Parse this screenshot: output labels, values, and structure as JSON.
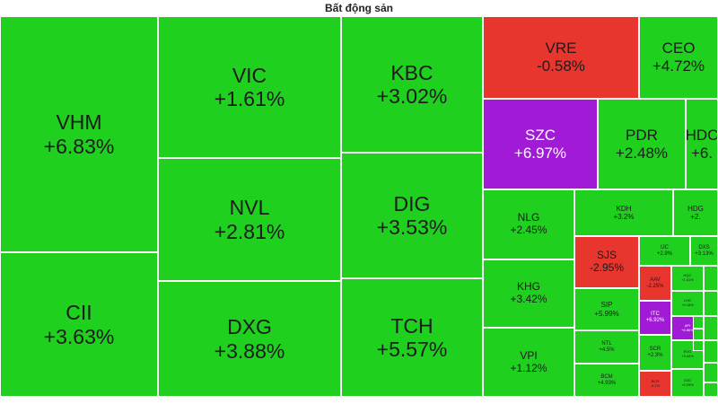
{
  "header": {
    "title": "Bất động sản"
  },
  "colors": {
    "up": "#1fd01f",
    "down": "#e8362f",
    "ceiling": "#a11ad6"
  },
  "tiles": [
    {
      "symbol": "VHM",
      "change": "+6.83%",
      "status": "up"
    },
    {
      "symbol": "CII",
      "change": "+3.63%",
      "status": "up"
    },
    {
      "symbol": "VIC",
      "change": "+1.61%",
      "status": "up"
    },
    {
      "symbol": "NVL",
      "change": "+2.81%",
      "status": "up"
    },
    {
      "symbol": "DXG",
      "change": "+3.88%",
      "status": "up"
    },
    {
      "symbol": "KBC",
      "change": "+3.02%",
      "status": "up"
    },
    {
      "symbol": "DIG",
      "change": "+3.53%",
      "status": "up"
    },
    {
      "symbol": "TCH",
      "change": "+5.57%",
      "status": "up"
    },
    {
      "symbol": "VRE",
      "change": "-0.58%",
      "status": "down"
    },
    {
      "symbol": "CEO",
      "change": "+4.72%",
      "status": "up"
    },
    {
      "symbol": "SZC",
      "change": "+6.97%",
      "status": "ceil"
    },
    {
      "symbol": "PDR",
      "change": "+2.48%",
      "status": "up"
    },
    {
      "symbol": "HDC",
      "change": "+6.",
      "status": "up"
    },
    {
      "symbol": "NLG",
      "change": "+2.45%",
      "status": "up"
    },
    {
      "symbol": "KHG",
      "change": "+3.42%",
      "status": "up"
    },
    {
      "symbol": "VPI",
      "change": "+1.12%",
      "status": "up"
    },
    {
      "symbol": "KDH",
      "change": "+3.2%",
      "status": "up"
    },
    {
      "symbol": "HDG",
      "change": "+2.",
      "status": "up"
    },
    {
      "symbol": "SJS",
      "change": "-2.95%",
      "status": "down"
    },
    {
      "symbol": "SIP",
      "change": "+5.99%",
      "status": "up"
    },
    {
      "symbol": "NTL",
      "change": "+4.5%",
      "status": "up"
    },
    {
      "symbol": "BCM",
      "change": "+4.93%",
      "status": "up"
    },
    {
      "symbol": "IJC",
      "change": "+2.9%",
      "status": "up"
    },
    {
      "symbol": "DXS",
      "change": "+3.13%",
      "status": "up"
    },
    {
      "symbol": "AAV",
      "change": "-2.25%",
      "status": "down"
    },
    {
      "symbol": "ITC",
      "change": "+6.92%",
      "status": "ceil"
    },
    {
      "symbol": "SCR",
      "change": "+2.3%",
      "status": "up"
    },
    {
      "symbol": "BCR",
      "change": "-8.7%",
      "status": "down"
    },
    {
      "symbol": "HQC",
      "change": "+1.81%",
      "status": "up"
    },
    {
      "symbol": "LHG",
      "change": "+5.18%",
      "status": "up"
    },
    {
      "symbol": "API",
      "change": "+6.86%",
      "status": "ceil"
    },
    {
      "symbol": "EVG",
      "change": "+3.44%",
      "status": "up"
    },
    {
      "symbol": "D2D",
      "change": "+0.29%",
      "status": "up"
    },
    {
      "symbol": "",
      "change": "",
      "status": "up"
    },
    {
      "symbol": "",
      "change": "",
      "status": "up"
    },
    {
      "symbol": "",
      "change": "",
      "status": "up"
    },
    {
      "symbol": "",
      "change": "",
      "status": "up"
    },
    {
      "symbol": "",
      "change": "",
      "status": "up"
    },
    {
      "symbol": "",
      "change": "",
      "status": "up"
    },
    {
      "symbol": "",
      "change": "",
      "status": "up"
    },
    {
      "symbol": "",
      "change": "",
      "status": "up"
    },
    {
      "symbol": "",
      "change": "",
      "status": "up"
    }
  ]
}
